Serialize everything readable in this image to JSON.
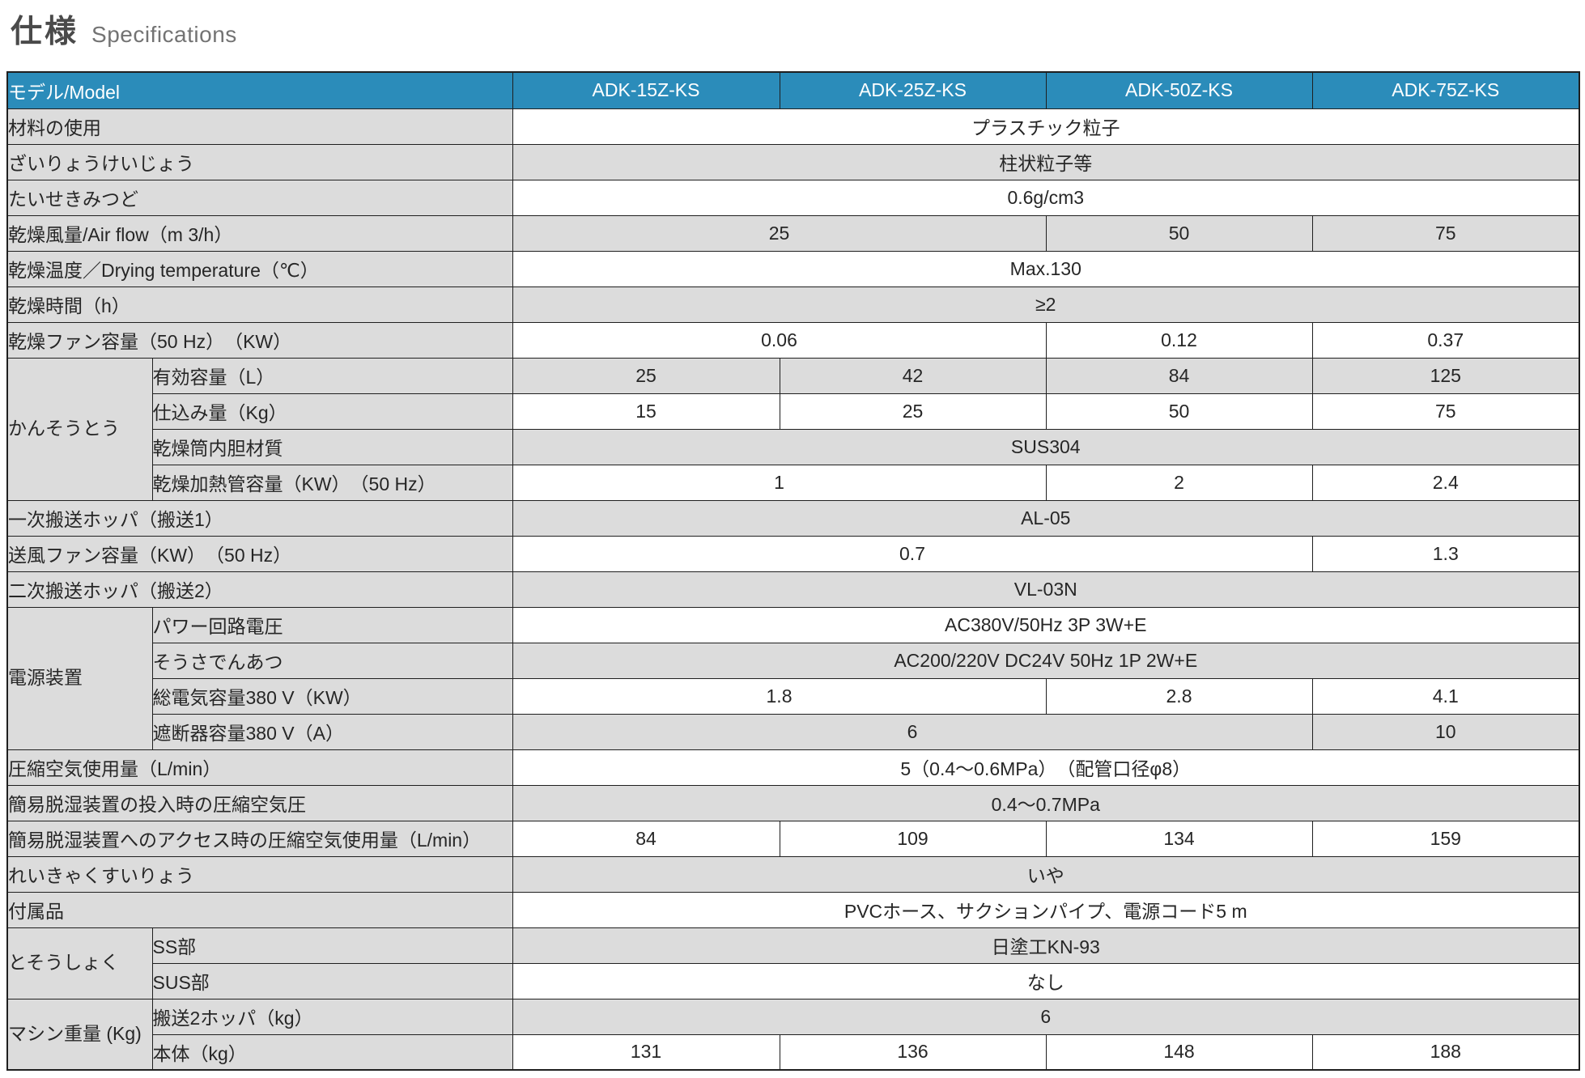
{
  "title": {
    "jp": "仕様",
    "en": "Specifications"
  },
  "colors": {
    "header_bg": "#2b8cba",
    "header_text": "#ffffff",
    "shade_gray": "#dcdcdc",
    "shade_white": "#ffffff",
    "border": "#1f1f1f",
    "text": "#262626",
    "title_jp": "#4a4a4a",
    "title_en": "#737373"
  },
  "table": {
    "header": {
      "label": "モデル/Model",
      "models": [
        "ADK-15Z-KS",
        "ADK-25Z-KS",
        "ADK-50Z-KS",
        "ADK-75Z-KS"
      ]
    },
    "rows": [
      {
        "label": "材料の使用",
        "values": [
          {
            "t": "プラスチック粒子",
            "s": 4
          }
        ]
      },
      {
        "label": "ざいりょうけいじょう",
        "values": [
          {
            "t": "柱状粒子等",
            "s": 4
          }
        ]
      },
      {
        "label": "たいせきみつど",
        "values": [
          {
            "t": "0.6g/cm3",
            "s": 4
          }
        ]
      },
      {
        "label": "乾燥風量/Air flow（m 3/h）",
        "values": [
          {
            "t": "25",
            "s": 2
          },
          {
            "t": "50",
            "s": 1
          },
          {
            "t": "75",
            "s": 1
          }
        ]
      },
      {
        "label": "乾燥温度／Drying temperature（℃）",
        "values": [
          {
            "t": "Max.130",
            "s": 4
          }
        ]
      },
      {
        "label": "乾燥時間（h）",
        "values": [
          {
            "t": "≥2",
            "s": 4
          }
        ]
      },
      {
        "label": "乾燥ファン容量（50 Hz）　（KW）",
        "values": [
          {
            "t": "0.06",
            "s": 2
          },
          {
            "t": "0.12",
            "s": 1
          },
          {
            "t": "0.37",
            "s": 1
          }
        ]
      },
      {
        "group": {
          "label": "かんそうとう",
          "span": 4
        },
        "label": "有効容量（L）",
        "values": [
          {
            "t": "25",
            "s": 1
          },
          {
            "t": "42",
            "s": 1
          },
          {
            "t": "84",
            "s": 1
          },
          {
            "t": "125",
            "s": 1
          }
        ]
      },
      {
        "label": "仕込み量（Kg）",
        "values": [
          {
            "t": "15",
            "s": 1
          },
          {
            "t": "25",
            "s": 1
          },
          {
            "t": "50",
            "s": 1
          },
          {
            "t": "75",
            "s": 1
          }
        ]
      },
      {
        "label": "乾燥筒内胆材質",
        "values": [
          {
            "t": "SUS304",
            "s": 4
          }
        ]
      },
      {
        "label": "乾燥加熱管容量（KW）　（50 Hz）",
        "values": [
          {
            "t": "1",
            "s": 2
          },
          {
            "t": "2",
            "s": 1
          },
          {
            "t": "2.4",
            "s": 1
          }
        ]
      },
      {
        "label": "一次搬送ホッパ（搬送1）",
        "values": [
          {
            "t": "AL-05",
            "s": 4
          }
        ]
      },
      {
        "label": "送風ファン容量（KW）　（50 Hz）",
        "values": [
          {
            "t": "0.7",
            "s": 3
          },
          {
            "t": "1.3",
            "s": 1
          }
        ]
      },
      {
        "label": "二次搬送ホッパ（搬送2）",
        "values": [
          {
            "t": "VL-03N",
            "s": 4
          }
        ]
      },
      {
        "group": {
          "label": "電源装置",
          "span": 4
        },
        "label": "パワー回路電圧",
        "values": [
          {
            "t": "AC380V/50Hz 3P 3W+E",
            "s": 4
          }
        ]
      },
      {
        "label": "そうさでんあつ",
        "values": [
          {
            "t": "AC200/220V DC24V 50Hz 1P 2W+E",
            "s": 4
          }
        ]
      },
      {
        "label": "総電気容量380 V（KW）",
        "values": [
          {
            "t": "1.8",
            "s": 2
          },
          {
            "t": "2.8",
            "s": 1
          },
          {
            "t": "4.1",
            "s": 1
          }
        ]
      },
      {
        "label": "遮断器容量380 V（A）",
        "values": [
          {
            "t": "6",
            "s": 3
          },
          {
            "t": "10",
            "s": 1
          }
        ]
      },
      {
        "label": "圧縮空気使用量（L/min）",
        "values": [
          {
            "t": "5（0.4～0.6MPa）　（配管口径φ8）",
            "s": 4
          }
        ]
      },
      {
        "label": "簡易脱湿装置の投入時の圧縮空気圧",
        "values": [
          {
            "t": "0.4～0.7MPa",
            "s": 4
          }
        ]
      },
      {
        "label": "簡易脱湿装置へのアクセス時の圧縮空気使用量（L/min）",
        "values": [
          {
            "t": "84",
            "s": 1
          },
          {
            "t": "109",
            "s": 1
          },
          {
            "t": "134",
            "s": 1
          },
          {
            "t": "159",
            "s": 1
          }
        ]
      },
      {
        "label": "れいきゃくすいりょう",
        "values": [
          {
            "t": "いや",
            "s": 4
          }
        ]
      },
      {
        "label": "付属品",
        "values": [
          {
            "t": "PVCホース、サクションパイプ、電源コード5 m",
            "s": 4
          }
        ]
      },
      {
        "group": {
          "label": "とそうしょく",
          "span": 2
        },
        "label": "SS部",
        "values": [
          {
            "t": "日塗工KN-93",
            "s": 4
          }
        ]
      },
      {
        "label": "SUS部",
        "values": [
          {
            "t": "なし",
            "s": 4
          }
        ]
      },
      {
        "group": {
          "label": "マシン重量\n(Kg)",
          "span": 2
        },
        "label": "搬送2ホッパ（kg）",
        "values": [
          {
            "t": "6",
            "s": 4
          }
        ]
      },
      {
        "label": "本体（kg）",
        "values": [
          {
            "t": "131",
            "s": 1
          },
          {
            "t": "136",
            "s": 1
          },
          {
            "t": "148",
            "s": 1
          },
          {
            "t": "188",
            "s": 1
          }
        ]
      }
    ]
  }
}
